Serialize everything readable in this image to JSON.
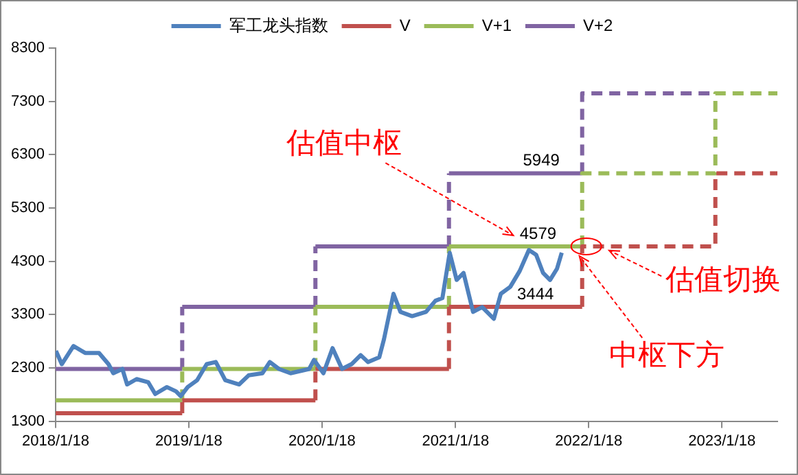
{
  "chart_data": {
    "type": "step",
    "xlim": [
      "2018-01-18",
      "2023-06-19"
    ],
    "ylim": [
      1300,
      8300
    ],
    "xticks": [
      {
        "value": "2018-01-18",
        "label": "2018/1/18"
      },
      {
        "value": "2019-01-18",
        "label": "2019/1/18"
      },
      {
        "value": "2020-01-18",
        "label": "2020/1/18"
      },
      {
        "value": "2021-01-18",
        "label": "2021/1/18"
      },
      {
        "value": "2022-01-18",
        "label": "2022/1/18"
      },
      {
        "value": "2023-01-18",
        "label": "2023/1/18"
      }
    ],
    "yticks": [
      1300,
      2300,
      3300,
      4300,
      5300,
      6300,
      7300,
      8300
    ],
    "grid": false,
    "legend": "top",
    "marker": "none",
    "series": [
      {
        "name": "军工龙头指数",
        "type": "line",
        "color": "#4f81bd",
        "line_style": "solid",
        "x": [
          "2018-01-19",
          "2018-02-04",
          "2018-03-08",
          "2018-04-09",
          "2018-05-17",
          "2018-06-12",
          "2018-06-25",
          "2018-07-20",
          "2018-08-02",
          "2018-08-28",
          "2018-09-29",
          "2018-10-18",
          "2018-11-19",
          "2018-12-14",
          "2018-12-27",
          "2019-01-15",
          "2019-02-10",
          "2019-03-08",
          "2019-04-02",
          "2019-04-28",
          "2019-06-05",
          "2019-07-01",
          "2019-08-08",
          "2019-08-28",
          "2019-09-22",
          "2019-10-24",
          "2019-12-14",
          "2019-12-27",
          "2020-01-22",
          "2020-02-16",
          "2020-03-13",
          "2020-04-08",
          "2020-05-03",
          "2020-05-23",
          "2020-06-23",
          "2020-07-06",
          "2020-08-01",
          "2020-08-20",
          "2020-09-21",
          "2020-10-29",
          "2020-11-24",
          "2020-12-13",
          "2021-01-02",
          "2021-01-21",
          "2021-02-09",
          "2021-03-07",
          "2021-04-01",
          "2021-05-03",
          "2021-05-22",
          "2021-06-17",
          "2021-07-13",
          "2021-08-07",
          "2021-08-27",
          "2021-09-15",
          "2021-10-04",
          "2021-10-23",
          "2021-11-05"
        ],
        "values": [
          2620,
          2370,
          2710,
          2580,
          2580,
          2370,
          2200,
          2280,
          1990,
          2090,
          2030,
          1810,
          1940,
          1860,
          1770,
          1940,
          2070,
          2370,
          2410,
          2070,
          1990,
          2160,
          2200,
          2410,
          2280,
          2200,
          2280,
          2450,
          2200,
          2670,
          2280,
          2370,
          2540,
          2410,
          2500,
          2840,
          3690,
          3350,
          3270,
          3350,
          3560,
          3610,
          4460,
          3950,
          4080,
          3350,
          3440,
          3220,
          3690,
          3820,
          4120,
          4510,
          4420,
          4080,
          3950,
          4160,
          4460
        ]
      },
      {
        "name": "V",
        "color": "#c0504d",
        "line_style": "dashed",
        "x": [
          "2018-01-18",
          "2018-12-31",
          "2019-12-31",
          "2020-12-31",
          "2021-12-31",
          "2022-12-31",
          "2023-06-19"
        ],
        "values": [
          1450,
          1690,
          2280,
          3444,
          4579,
          5949,
          5949
        ]
      },
      {
        "name": "V+1",
        "color": "#9bbb59",
        "line_style": "dashed",
        "x": [
          "2018-01-18",
          "2018-12-31",
          "2019-12-31",
          "2020-12-31",
          "2021-12-31",
          "2022-12-31",
          "2023-06-19"
        ],
        "values": [
          1690,
          2280,
          3444,
          4579,
          5949,
          7450,
          7450
        ]
      },
      {
        "name": "V+2",
        "color": "#8064a2",
        "line_style": "dashed",
        "x": [
          "2018-01-18",
          "2018-12-31",
          "2019-12-31",
          "2020-12-31",
          "2021-12-31",
          "2022-12-31"
        ],
        "values": [
          2280,
          3444,
          4579,
          5949,
          7450,
          7450
        ]
      }
    ],
    "annotations": [
      {
        "text": "5949",
        "x": "2021-09-10",
        "y": 5949
      },
      {
        "text": "4579",
        "x": "2021-09-01",
        "y": 4579
      },
      {
        "text": "3444",
        "x": "2021-08-25",
        "y": 3444
      },
      "估值中枢",
      {
        "text": "估值切换",
        "x": "2022-03-15",
        "y": 4579
      },
      {
        "text": "中枢下方",
        "x": "2021-12-31",
        "y": 4579
      }
    ]
  }
}
